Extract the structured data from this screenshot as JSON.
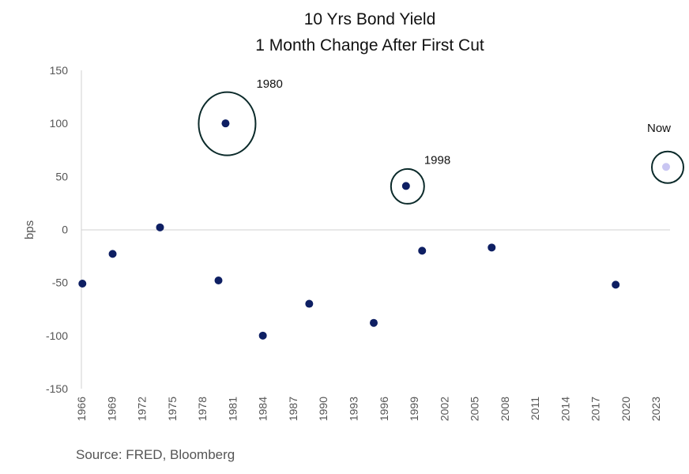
{
  "chart_data": {
    "type": "scatter",
    "title": "10 Yrs Bond Yield",
    "subtitle": "1 Month Change After First Cut",
    "xlabel": "",
    "ylabel": "bps",
    "xlim": [
      1966,
      2024
    ],
    "ylim": [
      -150,
      150
    ],
    "yticks": [
      150,
      100,
      50,
      0,
      -50,
      -100,
      -150
    ],
    "xticks": [
      "1966",
      "1969",
      "1972",
      "1975",
      "1978",
      "1981",
      "1984",
      "1987",
      "1990",
      "1993",
      "1996",
      "1999",
      "2002",
      "2005",
      "2008",
      "2011",
      "2014",
      "2017",
      "2020",
      "2023"
    ],
    "grid": false,
    "points": [
      {
        "x": 1966.1,
        "y": -51
      },
      {
        "x": 1969.1,
        "y": -23
      },
      {
        "x": 1973.8,
        "y": 2
      },
      {
        "x": 1979.6,
        "y": -48
      },
      {
        "x": 1980.3,
        "y": 100
      },
      {
        "x": 1984.0,
        "y": -100
      },
      {
        "x": 1988.6,
        "y": -70
      },
      {
        "x": 1995.0,
        "y": -88
      },
      {
        "x": 1998.2,
        "y": 41
      },
      {
        "x": 1999.8,
        "y": -20
      },
      {
        "x": 2006.7,
        "y": -17
      },
      {
        "x": 2019.0,
        "y": -52
      },
      {
        "x": 2024.0,
        "y": 59
      }
    ],
    "highlight_color": "#c9c6f2",
    "point_color": "#0e1f63",
    "annotations": [
      {
        "label": "1980",
        "x": 1980.3,
        "y": 100
      },
      {
        "label": "1998",
        "x": 1998.2,
        "y": 41
      },
      {
        "label": "Now",
        "x": 2024.0,
        "y": 59,
        "highlight": true
      }
    ],
    "source": "Source: FRED, Bloomberg"
  }
}
